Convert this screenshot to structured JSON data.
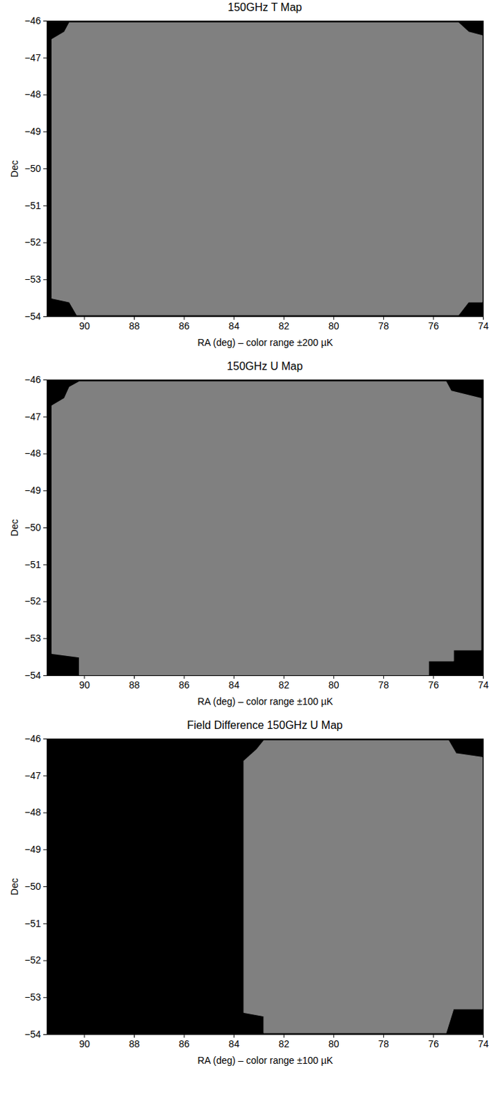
{
  "chart_data": [
    {
      "type": "map",
      "title": "150GHz T Map",
      "x_label": "RA (deg) – color range ±200 µK",
      "y_label": "Dec",
      "xlim": [
        91.5,
        74
      ],
      "ylim": [
        -54,
        -46
      ],
      "xticks": [
        90,
        88,
        86,
        84,
        82,
        80,
        78,
        76,
        74
      ],
      "yticks": [
        -54,
        -53,
        -52,
        -51,
        -50,
        -49,
        -48,
        -47,
        -46
      ],
      "color": "#808080",
      "coverage": [
        [
          90.6,
          -46.05
        ],
        [
          75.0,
          -46.05
        ],
        [
          74.6,
          -46.3
        ],
        [
          74.05,
          -46.4
        ],
        [
          74.05,
          -53.6
        ],
        [
          74.6,
          -53.6
        ],
        [
          75.0,
          -53.95
        ],
        [
          90.3,
          -53.95
        ],
        [
          90.6,
          -53.6
        ],
        [
          91.3,
          -53.5
        ],
        [
          91.3,
          -46.5
        ],
        [
          90.8,
          -46.3
        ]
      ]
    },
    {
      "type": "map",
      "title": "150GHz U Map",
      "x_label": "RA (deg) – color range ±100 µK",
      "y_label": "Dec",
      "xlim": [
        91.5,
        74
      ],
      "ylim": [
        -54,
        -46
      ],
      "xticks": [
        90,
        88,
        86,
        84,
        82,
        80,
        78,
        76,
        74
      ],
      "yticks": [
        -54,
        -53,
        -52,
        -51,
        -50,
        -49,
        -48,
        -47,
        -46
      ],
      "color": "#808080",
      "coverage": [
        [
          90.2,
          -46.05
        ],
        [
          75.5,
          -46.05
        ],
        [
          75.3,
          -46.3
        ],
        [
          74.1,
          -46.5
        ],
        [
          74.1,
          -53.3
        ],
        [
          75.2,
          -53.3
        ],
        [
          75.2,
          -53.6
        ],
        [
          76.2,
          -53.6
        ],
        [
          76.2,
          -54
        ],
        [
          90.2,
          -54
        ],
        [
          90.2,
          -53.5
        ],
        [
          91.3,
          -53.4
        ],
        [
          91.3,
          -46.7
        ],
        [
          90.8,
          -46.5
        ],
        [
          90.6,
          -46.2
        ]
      ]
    },
    {
      "type": "map",
      "title": "Field Difference 150GHz U Map",
      "x_label": "RA (deg) – color range ±100 µK",
      "y_label": "Dec",
      "xlim": [
        91.5,
        74
      ],
      "ylim": [
        -54,
        -46
      ],
      "xticks": [
        90,
        88,
        86,
        84,
        82,
        80,
        78,
        76,
        74
      ],
      "yticks": [
        -54,
        -53,
        -52,
        -51,
        -50,
        -49,
        -48,
        -47,
        -46
      ],
      "color": "#808080",
      "coverage": [
        [
          82.8,
          -46.05
        ],
        [
          75.4,
          -46.05
        ],
        [
          75.1,
          -46.4
        ],
        [
          74.05,
          -46.5
        ],
        [
          74.05,
          -53.3
        ],
        [
          75.2,
          -53.3
        ],
        [
          75.5,
          -53.95
        ],
        [
          82.8,
          -53.95
        ],
        [
          82.8,
          -53.5
        ],
        [
          83.6,
          -53.4
        ],
        [
          83.6,
          -46.6
        ],
        [
          83.1,
          -46.3
        ]
      ]
    }
  ]
}
